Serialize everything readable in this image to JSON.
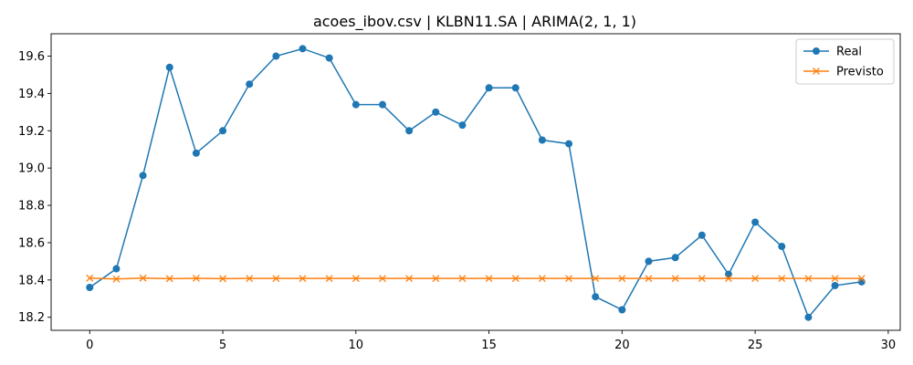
{
  "chart_data": {
    "type": "line",
    "title": "acoes_ibov.csv | KLBN11.SA | ARIMA(2, 1, 1)",
    "xlabel": "",
    "ylabel": "",
    "xlim": [
      -1.45,
      30.45
    ],
    "ylim": [
      18.13,
      19.72
    ],
    "xticks": [
      0,
      5,
      10,
      15,
      20,
      25,
      30
    ],
    "yticks": [
      18.2,
      18.4,
      18.6,
      18.8,
      19.0,
      19.2,
      19.4,
      19.6
    ],
    "xtick_labels": [
      "0",
      "5",
      "10",
      "15",
      "20",
      "25",
      "30"
    ],
    "ytick_labels": [
      "18.2",
      "18.4",
      "18.6",
      "18.8",
      "19.0",
      "19.2",
      "19.4",
      "19.6"
    ],
    "grid": false,
    "legend_position": "top-right",
    "x": [
      0,
      1,
      2,
      3,
      4,
      5,
      6,
      7,
      8,
      9,
      10,
      11,
      12,
      13,
      14,
      15,
      16,
      17,
      18,
      19,
      20,
      21,
      22,
      23,
      24,
      25,
      26,
      27,
      28,
      29
    ],
    "series": [
      {
        "name": "Real",
        "color": "#1f77b4",
        "marker": "circle",
        "values": [
          18.36,
          18.46,
          18.96,
          19.54,
          19.08,
          19.2,
          19.45,
          19.6,
          19.64,
          19.59,
          19.34,
          19.34,
          19.2,
          19.3,
          19.23,
          19.43,
          19.43,
          19.15,
          19.13,
          18.31,
          18.24,
          18.5,
          18.52,
          18.64,
          18.43,
          18.71,
          18.58,
          18.2,
          18.37,
          18.39
        ]
      },
      {
        "name": "Previsto",
        "color": "#ff7f0e",
        "marker": "x",
        "values": [
          18.41,
          18.405,
          18.41,
          18.407,
          18.409,
          18.407,
          18.408,
          18.408,
          18.408,
          18.408,
          18.408,
          18.408,
          18.408,
          18.408,
          18.408,
          18.408,
          18.408,
          18.408,
          18.408,
          18.408,
          18.408,
          18.408,
          18.408,
          18.408,
          18.408,
          18.408,
          18.408,
          18.408,
          18.408,
          18.408
        ]
      }
    ]
  }
}
